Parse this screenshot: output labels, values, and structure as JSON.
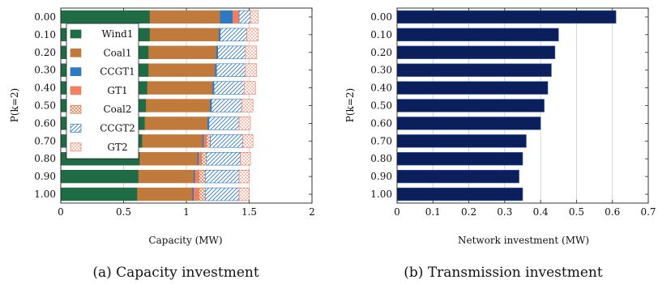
{
  "chart_data": [
    {
      "type": "bar",
      "orientation": "horizontal",
      "stacked": true,
      "caption": "(a) Capacity investment",
      "xlabel": "Capacity (MW)",
      "ylabel": "P(k=2)",
      "xlim": [
        0,
        2
      ],
      "xticks": [
        "0",
        "0.5",
        "1",
        "1.5",
        "2"
      ],
      "grid": "vertical",
      "legend_position": "upper-left",
      "categories": [
        "0.00",
        "0.10",
        "0.20",
        "0.30",
        "0.40",
        "0.50",
        "0.60",
        "0.70",
        "0.80",
        "0.90",
        "1.00"
      ],
      "series": [
        {
          "name": "Wind1",
          "color": "#1f6b45",
          "pattern": "solid",
          "values": [
            0.71,
            0.71,
            0.7,
            0.7,
            0.69,
            0.68,
            0.67,
            0.65,
            0.63,
            0.62,
            0.61
          ]
        },
        {
          "name": "Coal1",
          "color": "#c07a3c",
          "pattern": "solid",
          "values": [
            0.56,
            0.55,
            0.54,
            0.53,
            0.52,
            0.51,
            0.5,
            0.48,
            0.46,
            0.44,
            0.44
          ]
        },
        {
          "name": "CCGT1",
          "color": "#2f78c4",
          "pattern": "solid",
          "values": [
            0.1,
            0.01,
            0.01,
            0.01,
            0.01,
            0.01,
            0.01,
            0.01,
            0.01,
            0.01,
            0.01
          ]
        },
        {
          "name": "GT1",
          "color": "#f08060",
          "pattern": "solid",
          "values": [
            0.05,
            0.0,
            0.0,
            0.0,
            0.0,
            0.0,
            0.0,
            0.02,
            0.02,
            0.03,
            0.04
          ]
        },
        {
          "name": "Coal2",
          "color": "#e07040",
          "pattern": "crosshatch",
          "values": [
            0.0,
            0.0,
            0.0,
            0.0,
            0.0,
            0.0,
            0.0,
            0.03,
            0.04,
            0.05,
            0.05
          ]
        },
        {
          "name": "CCGT2",
          "color": "#2f78c4",
          "pattern": "diagonal",
          "values": [
            0.09,
            0.21,
            0.22,
            0.23,
            0.24,
            0.24,
            0.24,
            0.26,
            0.27,
            0.27,
            0.27
          ]
        },
        {
          "name": "GT2",
          "color": "#f07050",
          "pattern": "dots",
          "values": [
            0.06,
            0.09,
            0.09,
            0.09,
            0.09,
            0.09,
            0.09,
            0.08,
            0.08,
            0.08,
            0.08
          ]
        }
      ]
    },
    {
      "type": "bar",
      "orientation": "horizontal",
      "caption": "(b) Transmission investment",
      "xlabel": "Network investment (MW)",
      "ylabel": "P(k=2)",
      "xlim": [
        0,
        0.7
      ],
      "xticks": [
        "0",
        "0.1",
        "0.2",
        "0.3",
        "0.4",
        "0.5",
        "0.6",
        "0.7"
      ],
      "grid": "vertical",
      "categories": [
        "0.00",
        "0.10",
        "0.20",
        "0.30",
        "0.40",
        "0.50",
        "0.60",
        "0.70",
        "0.80",
        "0.90",
        "1.00"
      ],
      "series": [
        {
          "color": "#0a1f5c",
          "values": [
            0.61,
            0.45,
            0.44,
            0.43,
            0.42,
            0.41,
            0.4,
            0.36,
            0.35,
            0.34,
            0.35
          ]
        }
      ]
    }
  ]
}
